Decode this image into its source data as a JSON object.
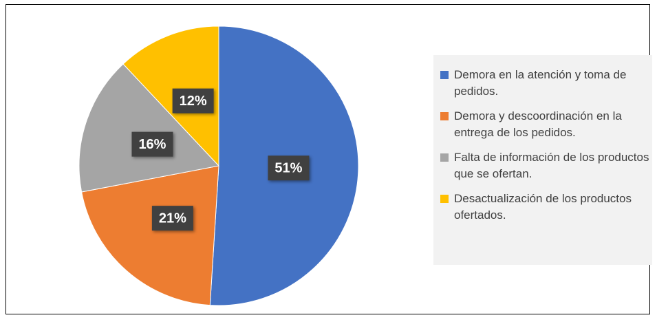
{
  "chart_data": {
    "type": "pie",
    "categories": [
      "Demora en la atención y toma de pedidos.",
      "Demora y descoordinación en la entrega de los pedidos.",
      "Falta de información de los productos que se ofertan.",
      "Desactualización de los productos ofertados."
    ],
    "values": [
      51,
      21,
      16,
      12
    ],
    "value_labels": [
      "51%",
      "21%",
      "16%",
      "12%"
    ],
    "colors": [
      "#4472c4",
      "#ed7d31",
      "#a5a5a5",
      "#ffc000"
    ],
    "legend": "right"
  }
}
